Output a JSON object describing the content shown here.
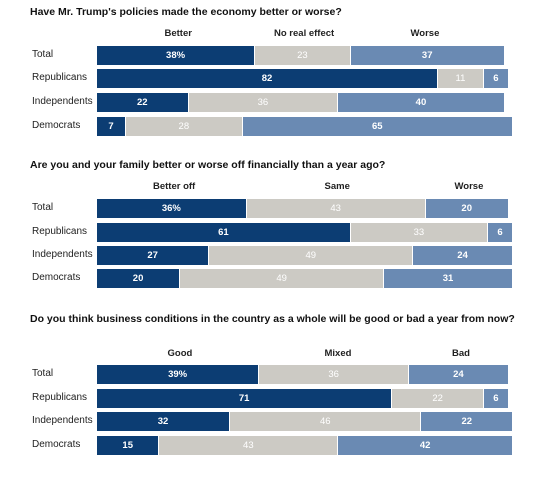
{
  "colors": {
    "better": "#0c3d73",
    "neutral": "#cccac4",
    "worse": "#6a8ab3"
  },
  "chart_data": [
    {
      "type": "bar",
      "stacked": true,
      "orientation": "horizontal",
      "title": "Have Mr. Trump's policies made the economy better or worse?",
      "categories": [
        "Total",
        "Republicans",
        "Independents",
        "Democrats"
      ],
      "series": [
        {
          "name": "Better",
          "values": [
            38,
            82,
            22,
            7
          ]
        },
        {
          "name": "No real effect",
          "values": [
            23,
            11,
            36,
            28
          ]
        },
        {
          "name": "Worse",
          "values": [
            37,
            6,
            40,
            65
          ]
        }
      ],
      "first_row_suffix": "%"
    },
    {
      "type": "bar",
      "stacked": true,
      "orientation": "horizontal",
      "title": "Are you and your family better or worse off financially than a year ago?",
      "categories": [
        "Total",
        "Republicans",
        "Independents",
        "Democrats"
      ],
      "series": [
        {
          "name": "Better off",
          "values": [
            36,
            61,
            27,
            20
          ]
        },
        {
          "name": "Same",
          "values": [
            43,
            33,
            49,
            49
          ]
        },
        {
          "name": "Worse",
          "values": [
            20,
            6,
            24,
            31
          ]
        }
      ],
      "first_row_suffix": "%"
    },
    {
      "type": "bar",
      "stacked": true,
      "orientation": "horizontal",
      "title": "Do you think business conditions in the country as a whole will be good or bad a year from now?",
      "categories": [
        "Total",
        "Republicans",
        "Independents",
        "Democrats"
      ],
      "series": [
        {
          "name": "Good",
          "values": [
            39,
            71,
            32,
            15
          ]
        },
        {
          "name": "Mixed",
          "values": [
            36,
            22,
            46,
            43
          ]
        },
        {
          "name": "Bad",
          "values": [
            24,
            6,
            22,
            42
          ]
        }
      ],
      "first_row_suffix": "%"
    }
  ]
}
